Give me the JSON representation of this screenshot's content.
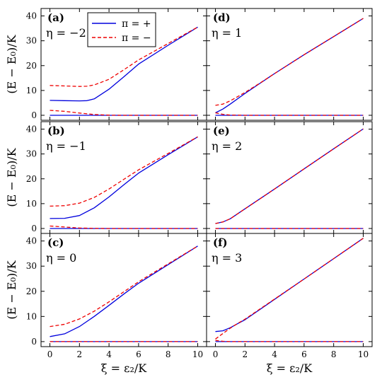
{
  "colors": {
    "plus": "#0000dd",
    "minus": "#ee0000",
    "frame": "#000000"
  },
  "figure": {
    "ylabel": "(E − E₀)/K",
    "xlabel": "ξ = ε₂/K",
    "legend": [
      {
        "label": "π = +",
        "color": "#0000dd",
        "style": "solid"
      },
      {
        "label": "π = −",
        "color": "#ee0000",
        "style": "dashed"
      }
    ],
    "legend_position": "top-left of panel (a)"
  },
  "chart_data": [
    {
      "type": "line",
      "panel": "(a)",
      "eta_label": "η = −2",
      "xlim": [
        -0.6,
        10.6
      ],
      "ylim": [
        -2,
        43
      ],
      "xticks": [
        0,
        2,
        4,
        6,
        8,
        10
      ],
      "yticks": [
        0,
        10,
        20,
        30,
        40
      ],
      "series": [
        {
          "name": "π = +",
          "x": [
            0,
            1,
            2,
            2.5,
            3,
            4,
            5,
            6,
            8,
            10
          ],
          "y": [
            6,
            5.9,
            5.8,
            5.9,
            6.6,
            10.5,
            15.5,
            20.6,
            28.2,
            35.5
          ]
        },
        {
          "name": "π = −",
          "x": [
            0,
            1,
            2,
            2.5,
            3,
            4,
            5,
            6,
            8,
            10
          ],
          "y": [
            12,
            11.8,
            11.6,
            11.7,
            12.2,
            14.5,
            18.3,
            22.3,
            28.9,
            35.5
          ]
        },
        {
          "name": "π = +",
          "x": [
            0,
            2,
            4,
            6,
            8,
            10
          ],
          "y": [
            0,
            0,
            0,
            0,
            0,
            0
          ]
        },
        {
          "name": "π = −",
          "x": [
            0,
            1,
            2,
            3,
            4,
            5,
            6,
            8,
            10
          ],
          "y": [
            2,
            1.6,
            0.9,
            0.3,
            0.05,
            0,
            0,
            0,
            0
          ]
        }
      ]
    },
    {
      "type": "line",
      "panel": "(b)",
      "eta_label": "η = −1",
      "xlim": [
        -0.6,
        10.6
      ],
      "ylim": [
        -2,
        43
      ],
      "xticks": [
        0,
        2,
        4,
        6,
        8,
        10
      ],
      "yticks": [
        0,
        10,
        20,
        30,
        40
      ],
      "series": [
        {
          "name": "π = +",
          "x": [
            0,
            1,
            2,
            3,
            4,
            5,
            6,
            8,
            10
          ],
          "y": [
            4,
            4.1,
            5.2,
            8.3,
            12.7,
            17.6,
            22.3,
            29.7,
            36.9
          ]
        },
        {
          "name": "π = −",
          "x": [
            0,
            1,
            2,
            3,
            4,
            5,
            6,
            8,
            10
          ],
          "y": [
            9,
            9.2,
            10.2,
            12.5,
            15.9,
            19.8,
            23.6,
            30.2,
            36.9
          ]
        },
        {
          "name": "π = +",
          "x": [
            0,
            2,
            4,
            6,
            8,
            10
          ],
          "y": [
            0,
            0,
            0,
            0,
            0,
            0
          ]
        },
        {
          "name": "π = −",
          "x": [
            0,
            1,
            2,
            3,
            4,
            6,
            8,
            10
          ],
          "y": [
            1,
            0.6,
            0.2,
            0.05,
            0,
            0,
            0,
            0
          ]
        }
      ]
    },
    {
      "type": "line",
      "panel": "(c)",
      "eta_label": "η = 0",
      "xlim": [
        -0.6,
        10.6
      ],
      "ylim": [
        -2,
        43
      ],
      "xticks": [
        0,
        2,
        4,
        6,
        8,
        10
      ],
      "yticks": [
        0,
        10,
        20,
        30,
        40
      ],
      "series": [
        {
          "name": "π = +",
          "x": [
            0,
            1,
            2,
            3,
            4,
            5,
            6,
            8,
            10
          ],
          "y": [
            2,
            3.1,
            6.0,
            10.0,
            14.4,
            18.9,
            23.2,
            30.6,
            38.0
          ]
        },
        {
          "name": "π = −",
          "x": [
            0,
            1,
            2,
            3,
            4,
            5,
            6,
            8,
            10
          ],
          "y": [
            6,
            6.9,
            9.0,
            12.1,
            15.8,
            19.8,
            23.8,
            30.9,
            38.0
          ]
        },
        {
          "name": "π = +",
          "x": [
            0,
            2,
            4,
            6,
            8,
            10
          ],
          "y": [
            0,
            0,
            0,
            0,
            0,
            0
          ]
        },
        {
          "name": "π = −",
          "x": [
            0,
            2,
            4,
            6,
            8,
            10
          ],
          "y": [
            0,
            0,
            0,
            0,
            0,
            0
          ]
        }
      ]
    },
    {
      "type": "line",
      "panel": "(d)",
      "eta_label": "η = 1",
      "xlim": [
        -0.6,
        10.6
      ],
      "ylim": [
        -2,
        43
      ],
      "xticks": [
        0,
        2,
        4,
        6,
        8,
        10
      ],
      "yticks": [
        0,
        10,
        20,
        30,
        40
      ],
      "series": [
        {
          "name": "π = +",
          "x": [
            0,
            0.5,
            1,
            2,
            3,
            4,
            6,
            8,
            10
          ],
          "y": [
            1,
            2.5,
            4.5,
            8.8,
            12.8,
            16.8,
            24.4,
            31.7,
            39.0
          ]
        },
        {
          "name": "π = −",
          "x": [
            0,
            0.5,
            1,
            2,
            3,
            4,
            6,
            8,
            10
          ],
          "y": [
            4,
            4.5,
            5.8,
            9.2,
            12.9,
            16.8,
            24.4,
            31.7,
            39.0
          ]
        },
        {
          "name": "π = +",
          "x": [
            0,
            2,
            4,
            6,
            8,
            10
          ],
          "y": [
            0,
            0,
            0,
            0,
            0,
            0
          ]
        },
        {
          "name": "π = −",
          "x": [
            0,
            0.5,
            1,
            2,
            4,
            6,
            8,
            10
          ],
          "y": [
            1,
            0.4,
            0.1,
            0,
            0,
            0,
            0,
            0
          ]
        }
      ]
    },
    {
      "type": "line",
      "panel": "(e)",
      "eta_label": "η = 2",
      "xlim": [
        -0.6,
        10.6
      ],
      "ylim": [
        -2,
        43
      ],
      "xticks": [
        0,
        2,
        4,
        6,
        8,
        10
      ],
      "yticks": [
        0,
        10,
        20,
        30,
        40
      ],
      "series": [
        {
          "name": "π = +",
          "x": [
            0,
            0.5,
            1,
            2,
            3,
            4,
            6,
            8,
            10
          ],
          "y": [
            2,
            2.6,
            3.9,
            7.9,
            11.9,
            15.9,
            24.0,
            32.1,
            40.1
          ]
        },
        {
          "name": "π = −",
          "x": [
            0,
            0.5,
            1,
            2,
            3,
            4,
            6,
            8,
            10
          ],
          "y": [
            2,
            2.6,
            3.9,
            7.9,
            11.9,
            15.9,
            24.0,
            32.1,
            40.1
          ]
        },
        {
          "name": "π = +",
          "x": [
            0,
            2,
            4,
            6,
            8,
            10
          ],
          "y": [
            0,
            0,
            0,
            0,
            0,
            0
          ]
        },
        {
          "name": "π = −",
          "x": [
            0,
            2,
            4,
            6,
            8,
            10
          ],
          "y": [
            0,
            0,
            0,
            0,
            0,
            0
          ]
        }
      ]
    },
    {
      "type": "line",
      "panel": "(f)",
      "eta_label": "η = 3",
      "xlim": [
        -0.6,
        10.6
      ],
      "ylim": [
        -2,
        43
      ],
      "xticks": [
        0,
        2,
        4,
        6,
        8,
        10
      ],
      "yticks": [
        0,
        10,
        20,
        30,
        40
      ],
      "series": [
        {
          "name": "π = +",
          "x": [
            0,
            0.5,
            1,
            1.5,
            2,
            4,
            6,
            8,
            10
          ],
          "y": [
            4,
            4.3,
            5.5,
            7.1,
            8.7,
            16.8,
            24.9,
            33.0,
            41.1
          ]
        },
        {
          "name": "π = −",
          "x": [
            0,
            0.5,
            1,
            1.5,
            2,
            4,
            6,
            8,
            10
          ],
          "y": [
            1,
            3.2,
            5.3,
            7.2,
            8.9,
            16.9,
            24.9,
            33.0,
            41.1
          ]
        },
        {
          "name": "π = +",
          "x": [
            0,
            2,
            4,
            6,
            8,
            10
          ],
          "y": [
            0,
            0,
            0,
            0,
            0,
            0
          ]
        },
        {
          "name": "π = −",
          "x": [
            0,
            0.5,
            1,
            2,
            4,
            6,
            8,
            10
          ],
          "y": [
            0.5,
            0.15,
            0,
            0,
            0,
            0,
            0,
            0
          ]
        }
      ]
    }
  ]
}
